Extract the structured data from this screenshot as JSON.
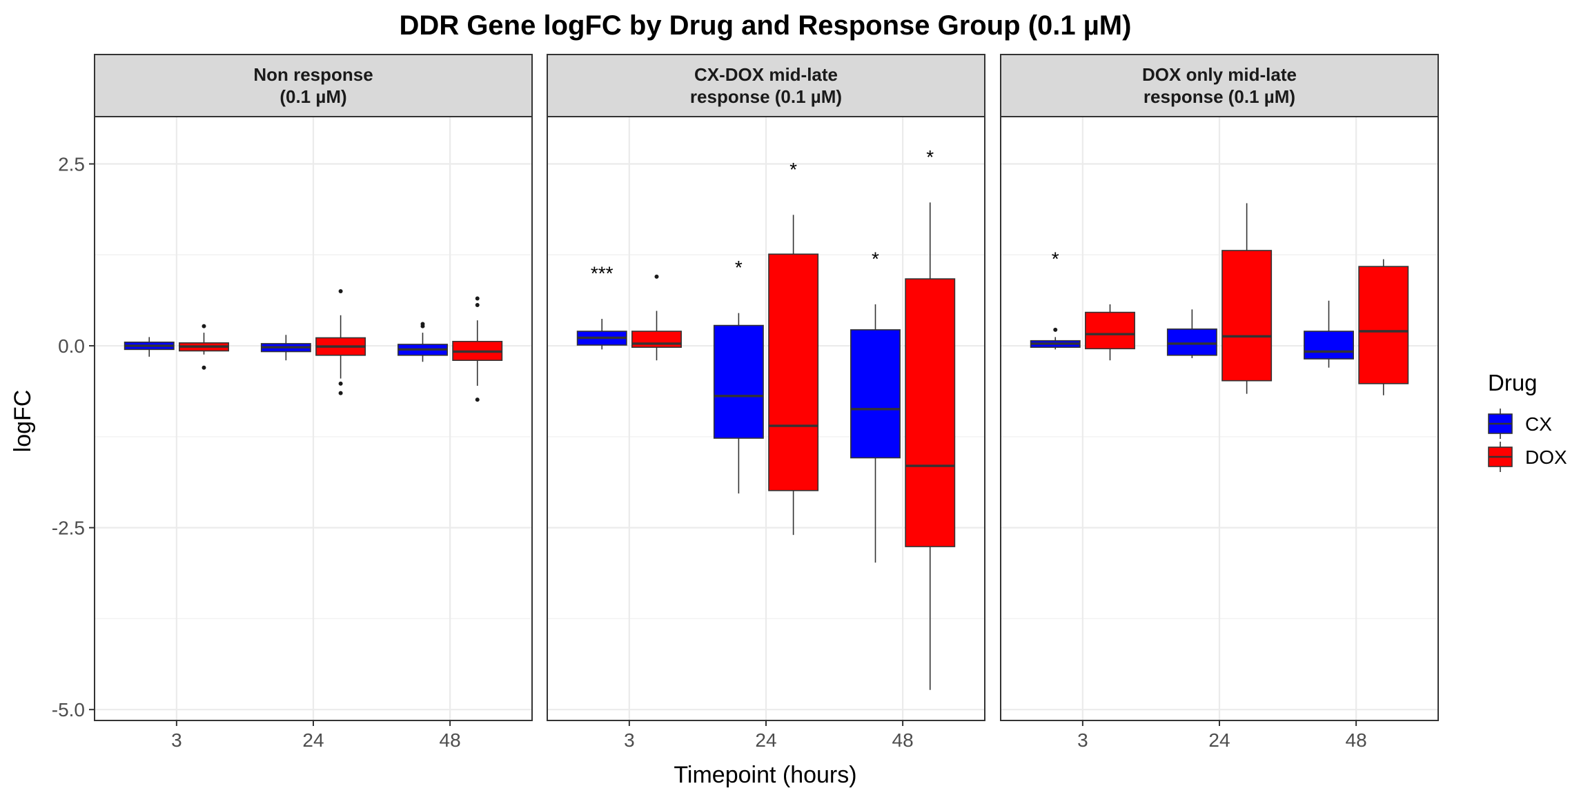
{
  "chart_data": {
    "type": "boxplot",
    "title": "DDR Gene logFC by Drug and Response Group (0.1 µM)",
    "xlabel": "Timepoint (hours)",
    "ylabel": "logFC",
    "ylim": [
      -5.15,
      3.15
    ],
    "yticks": [
      2.5,
      0.0,
      -2.5,
      -5.0
    ],
    "ytick_labels": [
      "2.5",
      "0.0",
      "-2.5",
      "-5.0"
    ],
    "categories": [
      "3",
      "24",
      "48"
    ],
    "grid": true,
    "legend": {
      "title": "Drug",
      "position": "right",
      "items": [
        {
          "name": "CX",
          "color": "#0000FF"
        },
        {
          "name": "DOX",
          "color": "#FF0000"
        }
      ]
    },
    "panels": [
      {
        "strip": [
          "Non response",
          "(0.1 µM)"
        ],
        "groups": [
          {
            "timepoint": "3",
            "drug": "CX",
            "whisker_low": -0.15,
            "q1": -0.05,
            "median": 0.0,
            "q3": 0.05,
            "whisker_high": 0.12,
            "outliers": []
          },
          {
            "timepoint": "3",
            "drug": "DOX",
            "whisker_low": -0.12,
            "q1": -0.07,
            "median": -0.01,
            "q3": 0.04,
            "whisker_high": 0.18,
            "outliers": [
              0.27,
              -0.3
            ]
          },
          {
            "timepoint": "24",
            "drug": "CX",
            "whisker_low": -0.2,
            "q1": -0.08,
            "median": -0.02,
            "q3": 0.03,
            "whisker_high": 0.15,
            "outliers": []
          },
          {
            "timepoint": "24",
            "drug": "DOX",
            "whisker_low": -0.45,
            "q1": -0.13,
            "median": -0.01,
            "q3": 0.11,
            "whisker_high": 0.42,
            "outliers": [
              0.75,
              -0.52,
              -0.65
            ]
          },
          {
            "timepoint": "48",
            "drug": "CX",
            "whisker_low": -0.22,
            "q1": -0.13,
            "median": -0.05,
            "q3": 0.02,
            "whisker_high": 0.18,
            "outliers": [
              0.3,
              0.27
            ]
          },
          {
            "timepoint": "48",
            "drug": "DOX",
            "whisker_low": -0.55,
            "q1": -0.2,
            "median": -0.08,
            "q3": 0.06,
            "whisker_high": 0.35,
            "outliers": [
              0.65,
              0.56,
              -0.74
            ]
          }
        ],
        "annotations": []
      },
      {
        "strip": [
          "CX-DOX mid-late",
          "response (0.1 µM)"
        ],
        "groups": [
          {
            "timepoint": "3",
            "drug": "CX",
            "whisker_low": -0.05,
            "q1": 0.01,
            "median": 0.11,
            "q3": 0.2,
            "whisker_high": 0.37,
            "outliers": []
          },
          {
            "timepoint": "3",
            "drug": "DOX",
            "whisker_low": -0.2,
            "q1": -0.02,
            "median": 0.03,
            "q3": 0.2,
            "whisker_high": 0.48,
            "outliers": [
              0.95
            ]
          },
          {
            "timepoint": "24",
            "drug": "CX",
            "whisker_low": -2.03,
            "q1": -1.27,
            "median": -0.69,
            "q3": 0.28,
            "whisker_high": 0.45,
            "outliers": []
          },
          {
            "timepoint": "24",
            "drug": "DOX",
            "whisker_low": -2.6,
            "q1": -1.99,
            "median": -1.1,
            "q3": 1.26,
            "whisker_high": 1.8,
            "outliers": []
          },
          {
            "timepoint": "48",
            "drug": "CX",
            "whisker_low": -2.98,
            "q1": -1.54,
            "median": -0.87,
            "q3": 0.22,
            "whisker_high": 0.57,
            "outliers": []
          },
          {
            "timepoint": "48",
            "drug": "DOX",
            "whisker_low": -4.73,
            "q1": -2.76,
            "median": -1.65,
            "q3": 0.92,
            "whisker_high": 1.97,
            "outliers": []
          }
        ],
        "annotations": [
          {
            "timepoint": "3",
            "text": "***",
            "y": 1.0
          },
          {
            "timepoint": "24",
            "text": "*",
            "y": 1.08
          },
          {
            "timepoint": "24.5",
            "text": "*",
            "y": 2.43
          },
          {
            "timepoint": "48",
            "text": "*",
            "y": 1.2
          },
          {
            "timepoint": "48.5",
            "text": "*",
            "y": 2.6
          }
        ]
      },
      {
        "strip": [
          "DOX only mid-late",
          "response (0.1 µM)"
        ],
        "groups": [
          {
            "timepoint": "3",
            "drug": "CX",
            "whisker_low": -0.05,
            "q1": -0.02,
            "median": 0.03,
            "q3": 0.07,
            "whisker_high": 0.12,
            "outliers": [
              0.22
            ]
          },
          {
            "timepoint": "3",
            "drug": "DOX",
            "whisker_low": -0.2,
            "q1": -0.04,
            "median": 0.16,
            "q3": 0.46,
            "whisker_high": 0.57,
            "outliers": []
          },
          {
            "timepoint": "24",
            "drug": "CX",
            "whisker_low": -0.17,
            "q1": -0.13,
            "median": 0.03,
            "q3": 0.23,
            "whisker_high": 0.5,
            "outliers": []
          },
          {
            "timepoint": "24",
            "drug": "DOX",
            "whisker_low": -0.66,
            "q1": -0.48,
            "median": 0.13,
            "q3": 1.31,
            "whisker_high": 1.96,
            "outliers": []
          },
          {
            "timepoint": "48",
            "drug": "CX",
            "whisker_low": -0.3,
            "q1": -0.18,
            "median": -0.08,
            "q3": 0.2,
            "whisker_high": 0.62,
            "outliers": []
          },
          {
            "timepoint": "48",
            "drug": "DOX",
            "whisker_low": -0.68,
            "q1": -0.52,
            "median": 0.2,
            "q3": 1.09,
            "whisker_high": 1.19,
            "outliers": []
          }
        ],
        "annotations": [
          {
            "timepoint": "3",
            "text": "*",
            "y": 1.2
          }
        ]
      }
    ]
  }
}
